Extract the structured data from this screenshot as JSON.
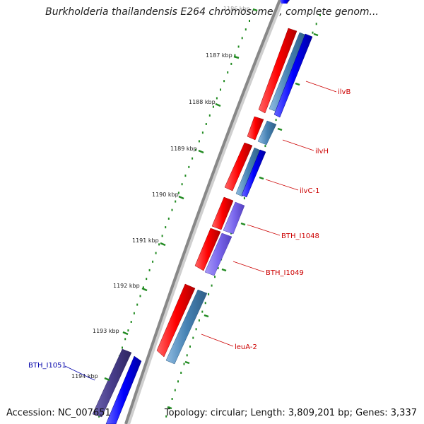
{
  "title": "Burkholderia thailandensis E264 chromosome I, complete genom...",
  "accession": "Accession: NC_007651",
  "topology": "Topology: circular; Length: 3,809,201 bp; Genes: 3,337",
  "colors": {
    "forward_cds": "#ff0000",
    "reverse_cds": "#0000ff",
    "rrna_like": "#4682b4",
    "purple_gene": "#7b68ee",
    "label_red": "#cc0000",
    "label_blue": "#0000aa",
    "tick_green": "#228b22",
    "backbone": "#888888"
  },
  "kbp_ticks": [
    "1186 kbp",
    "1187 kbp",
    "1188 kbp",
    "1189 kbp",
    "1190 kbp",
    "1191 kbp",
    "1192 kbp",
    "1193 kbp",
    "1194 kbp"
  ],
  "gene_labels": [
    "ilvB",
    "ilvH",
    "ilvC-1",
    "BTH_I1048",
    "BTH_I1049",
    "leuA-2",
    "BTH_I1051"
  ]
}
